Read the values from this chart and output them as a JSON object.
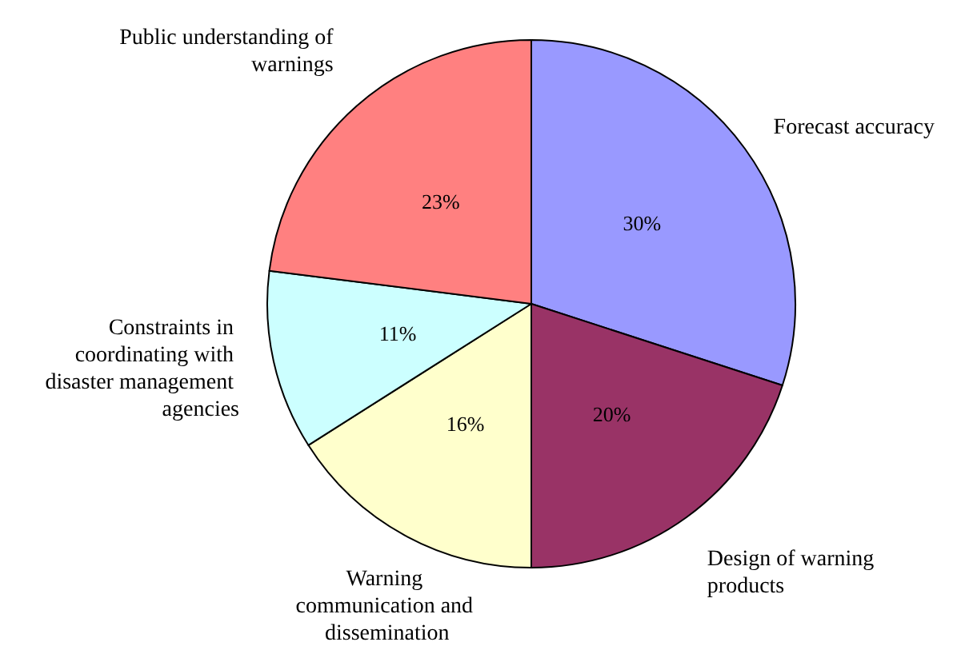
{
  "chart_data": {
    "type": "pie",
    "categories": [
      "Forecast accuracy",
      "Design of warning products",
      "Warning communication and dissemination",
      "Constraints in coordinating with disaster management agencies",
      "Public understanding of warnings"
    ],
    "values": [
      30,
      20,
      16,
      11,
      23
    ],
    "colors": [
      "#9999ff",
      "#993366",
      "#ffffcc",
      "#ccffff",
      "#ff8080"
    ],
    "value_labels": [
      "30%",
      "20%",
      "16%",
      "11%",
      "23%"
    ]
  }
}
